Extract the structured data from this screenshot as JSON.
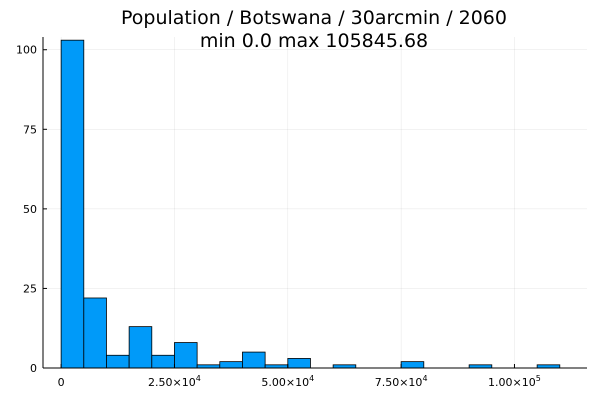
{
  "chart_data": {
    "type": "bar",
    "title": "Population / Botswana / 30arcmin / 2060",
    "subtitle": "min 0.0  max 105845.68",
    "xlabel": "",
    "ylabel": "",
    "bin_width": 5000,
    "bin_starts": [
      0,
      5000,
      10000,
      15000,
      20000,
      25000,
      30000,
      35000,
      40000,
      45000,
      50000,
      55000,
      60000,
      65000,
      70000,
      75000,
      80000,
      85000,
      90000,
      95000,
      100000,
      105000
    ],
    "values": [
      103,
      22,
      4,
      13,
      4,
      8,
      1,
      2,
      5,
      1,
      3,
      0,
      1,
      0,
      0,
      2,
      0,
      0,
      1,
      0,
      0,
      1
    ],
    "xlim": [
      -4000,
      116000
    ],
    "ylim": [
      0,
      104
    ],
    "grid": true,
    "legend": "none",
    "bar_color": "#009AF9",
    "bar_edge_color": "#000000",
    "y_ticks": [
      {
        "value": 0,
        "label": "0"
      },
      {
        "value": 25,
        "label": "25"
      },
      {
        "value": 50,
        "label": "50"
      },
      {
        "value": 75,
        "label": "75"
      },
      {
        "value": 100,
        "label": "100"
      }
    ],
    "x_ticks": [
      {
        "value": 0,
        "label": "0",
        "exp": ""
      },
      {
        "value": 25000,
        "label": "2.50×10",
        "exp": "4"
      },
      {
        "value": 50000,
        "label": "5.00×10",
        "exp": "4"
      },
      {
        "value": 75000,
        "label": "7.50×10",
        "exp": "4"
      },
      {
        "value": 100000,
        "label": "1.00×10",
        "exp": "5"
      }
    ]
  }
}
